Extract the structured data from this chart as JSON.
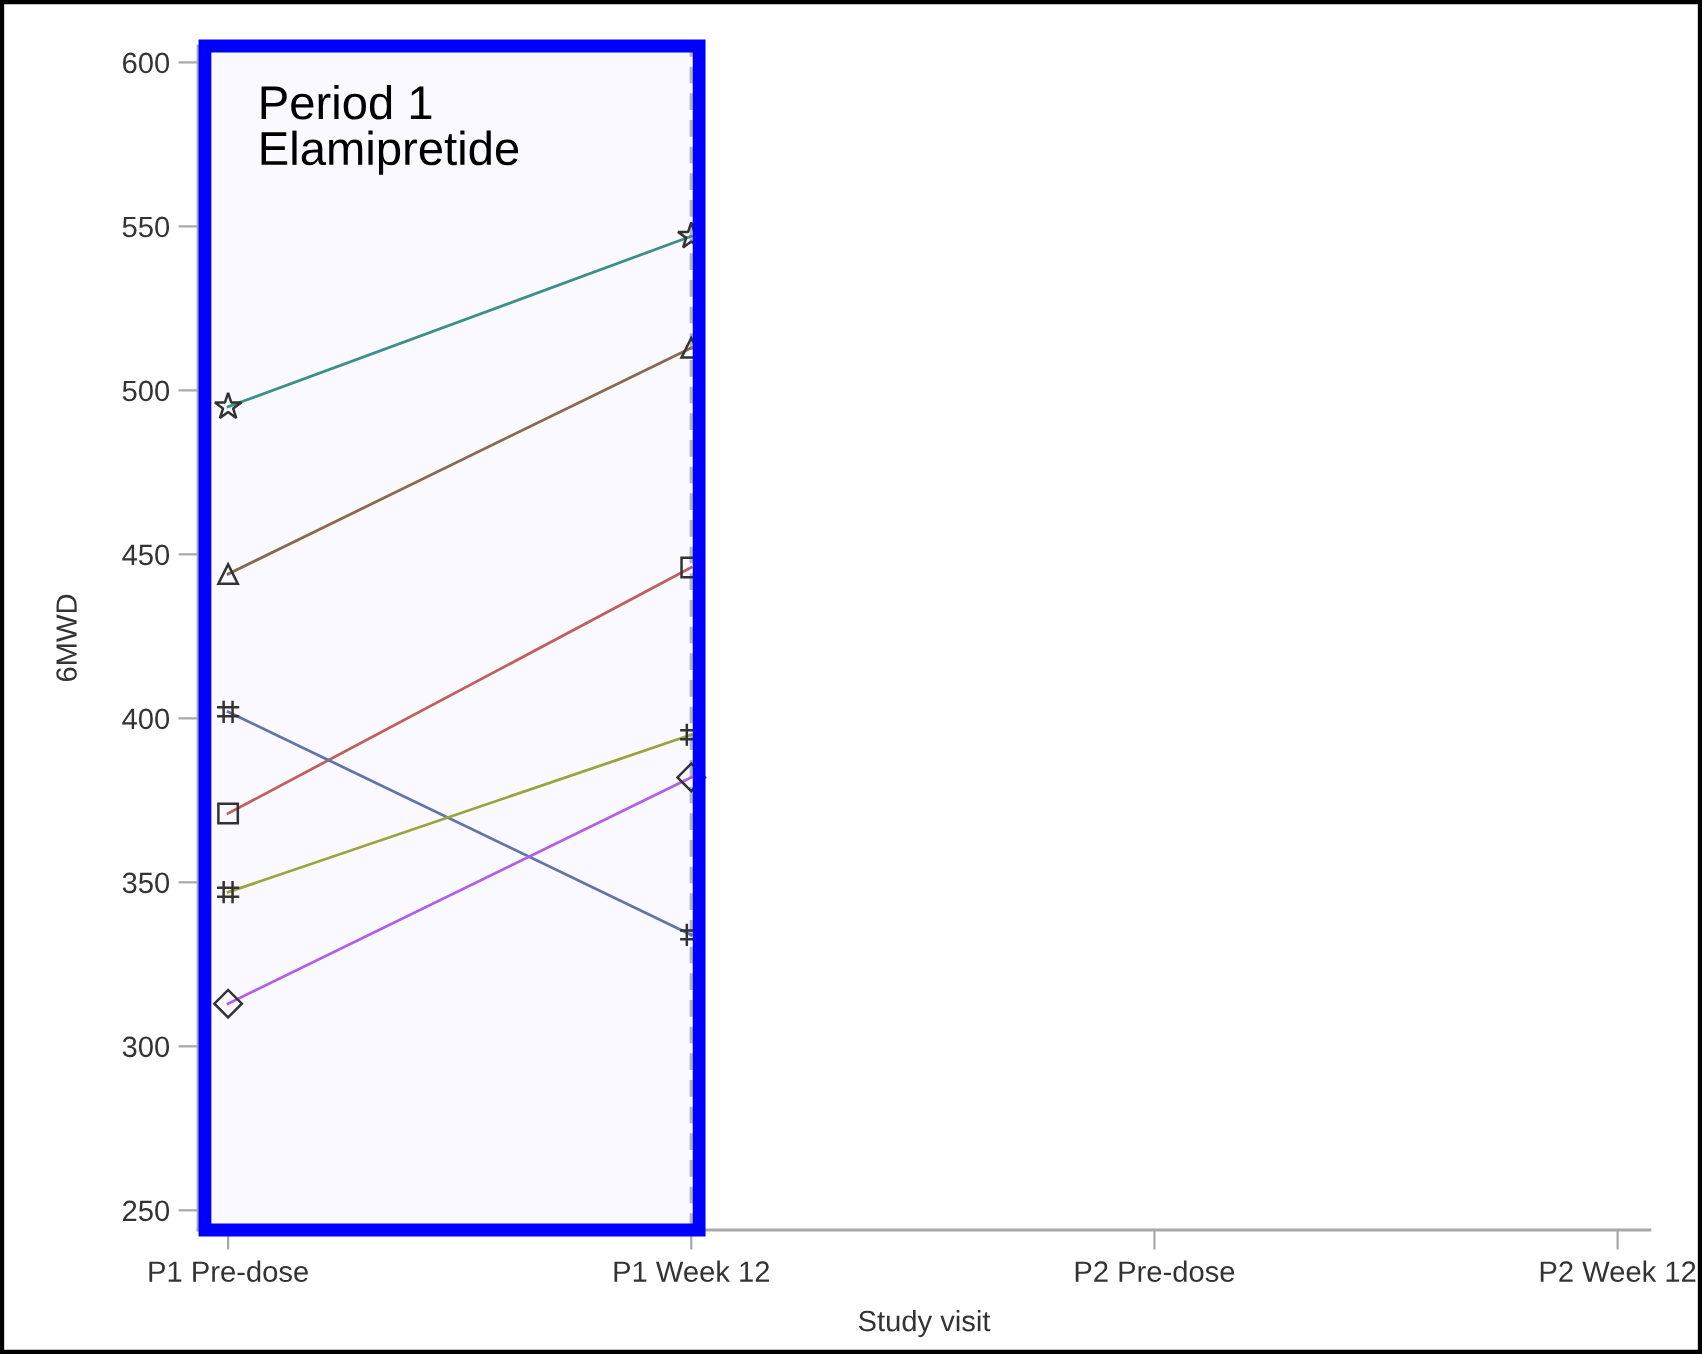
{
  "chart_data": {
    "type": "line",
    "xlabel": "Study visit",
    "ylabel": "6MWD",
    "grid": false,
    "categories": [
      "P1 Pre-dose",
      "P1 Week 12",
      "P2 Pre-dose",
      "P2 Week 12"
    ],
    "ylim": [
      244,
      605
    ],
    "yticks": [
      250,
      300,
      350,
      400,
      450,
      500,
      550,
      600
    ],
    "series": [
      {
        "color": "#3d8f8a",
        "marker": "star",
        "values": [
          495,
          547,
          null,
          null
        ]
      },
      {
        "color": "#8a6a48",
        "marker": "triangle",
        "values": [
          444,
          513,
          null,
          null
        ]
      },
      {
        "color": "#c0605a",
        "marker": "square",
        "values": [
          371,
          446,
          null,
          null
        ]
      },
      {
        "color": "#6474a8",
        "marker": "cross",
        "values": [
          402,
          334,
          null,
          null
        ]
      },
      {
        "color": "#9aa43c",
        "marker": "cross",
        "values": [
          347,
          395,
          null,
          null
        ]
      },
      {
        "color": "#b060e8",
        "marker": "diamond",
        "values": [
          313,
          382,
          null,
          null
        ]
      }
    ],
    "ref_lines": [
      {
        "axis": "x",
        "value": "P1 Week 12",
        "color": "#b8b8b8",
        "line_style": "dashed"
      }
    ],
    "bands": [
      {
        "axis": "x",
        "from": "P1 Pre-dose",
        "to": "P1 Week 12",
        "label": "Period 1\nElamipretide",
        "color": "#0000ff"
      }
    ]
  }
}
